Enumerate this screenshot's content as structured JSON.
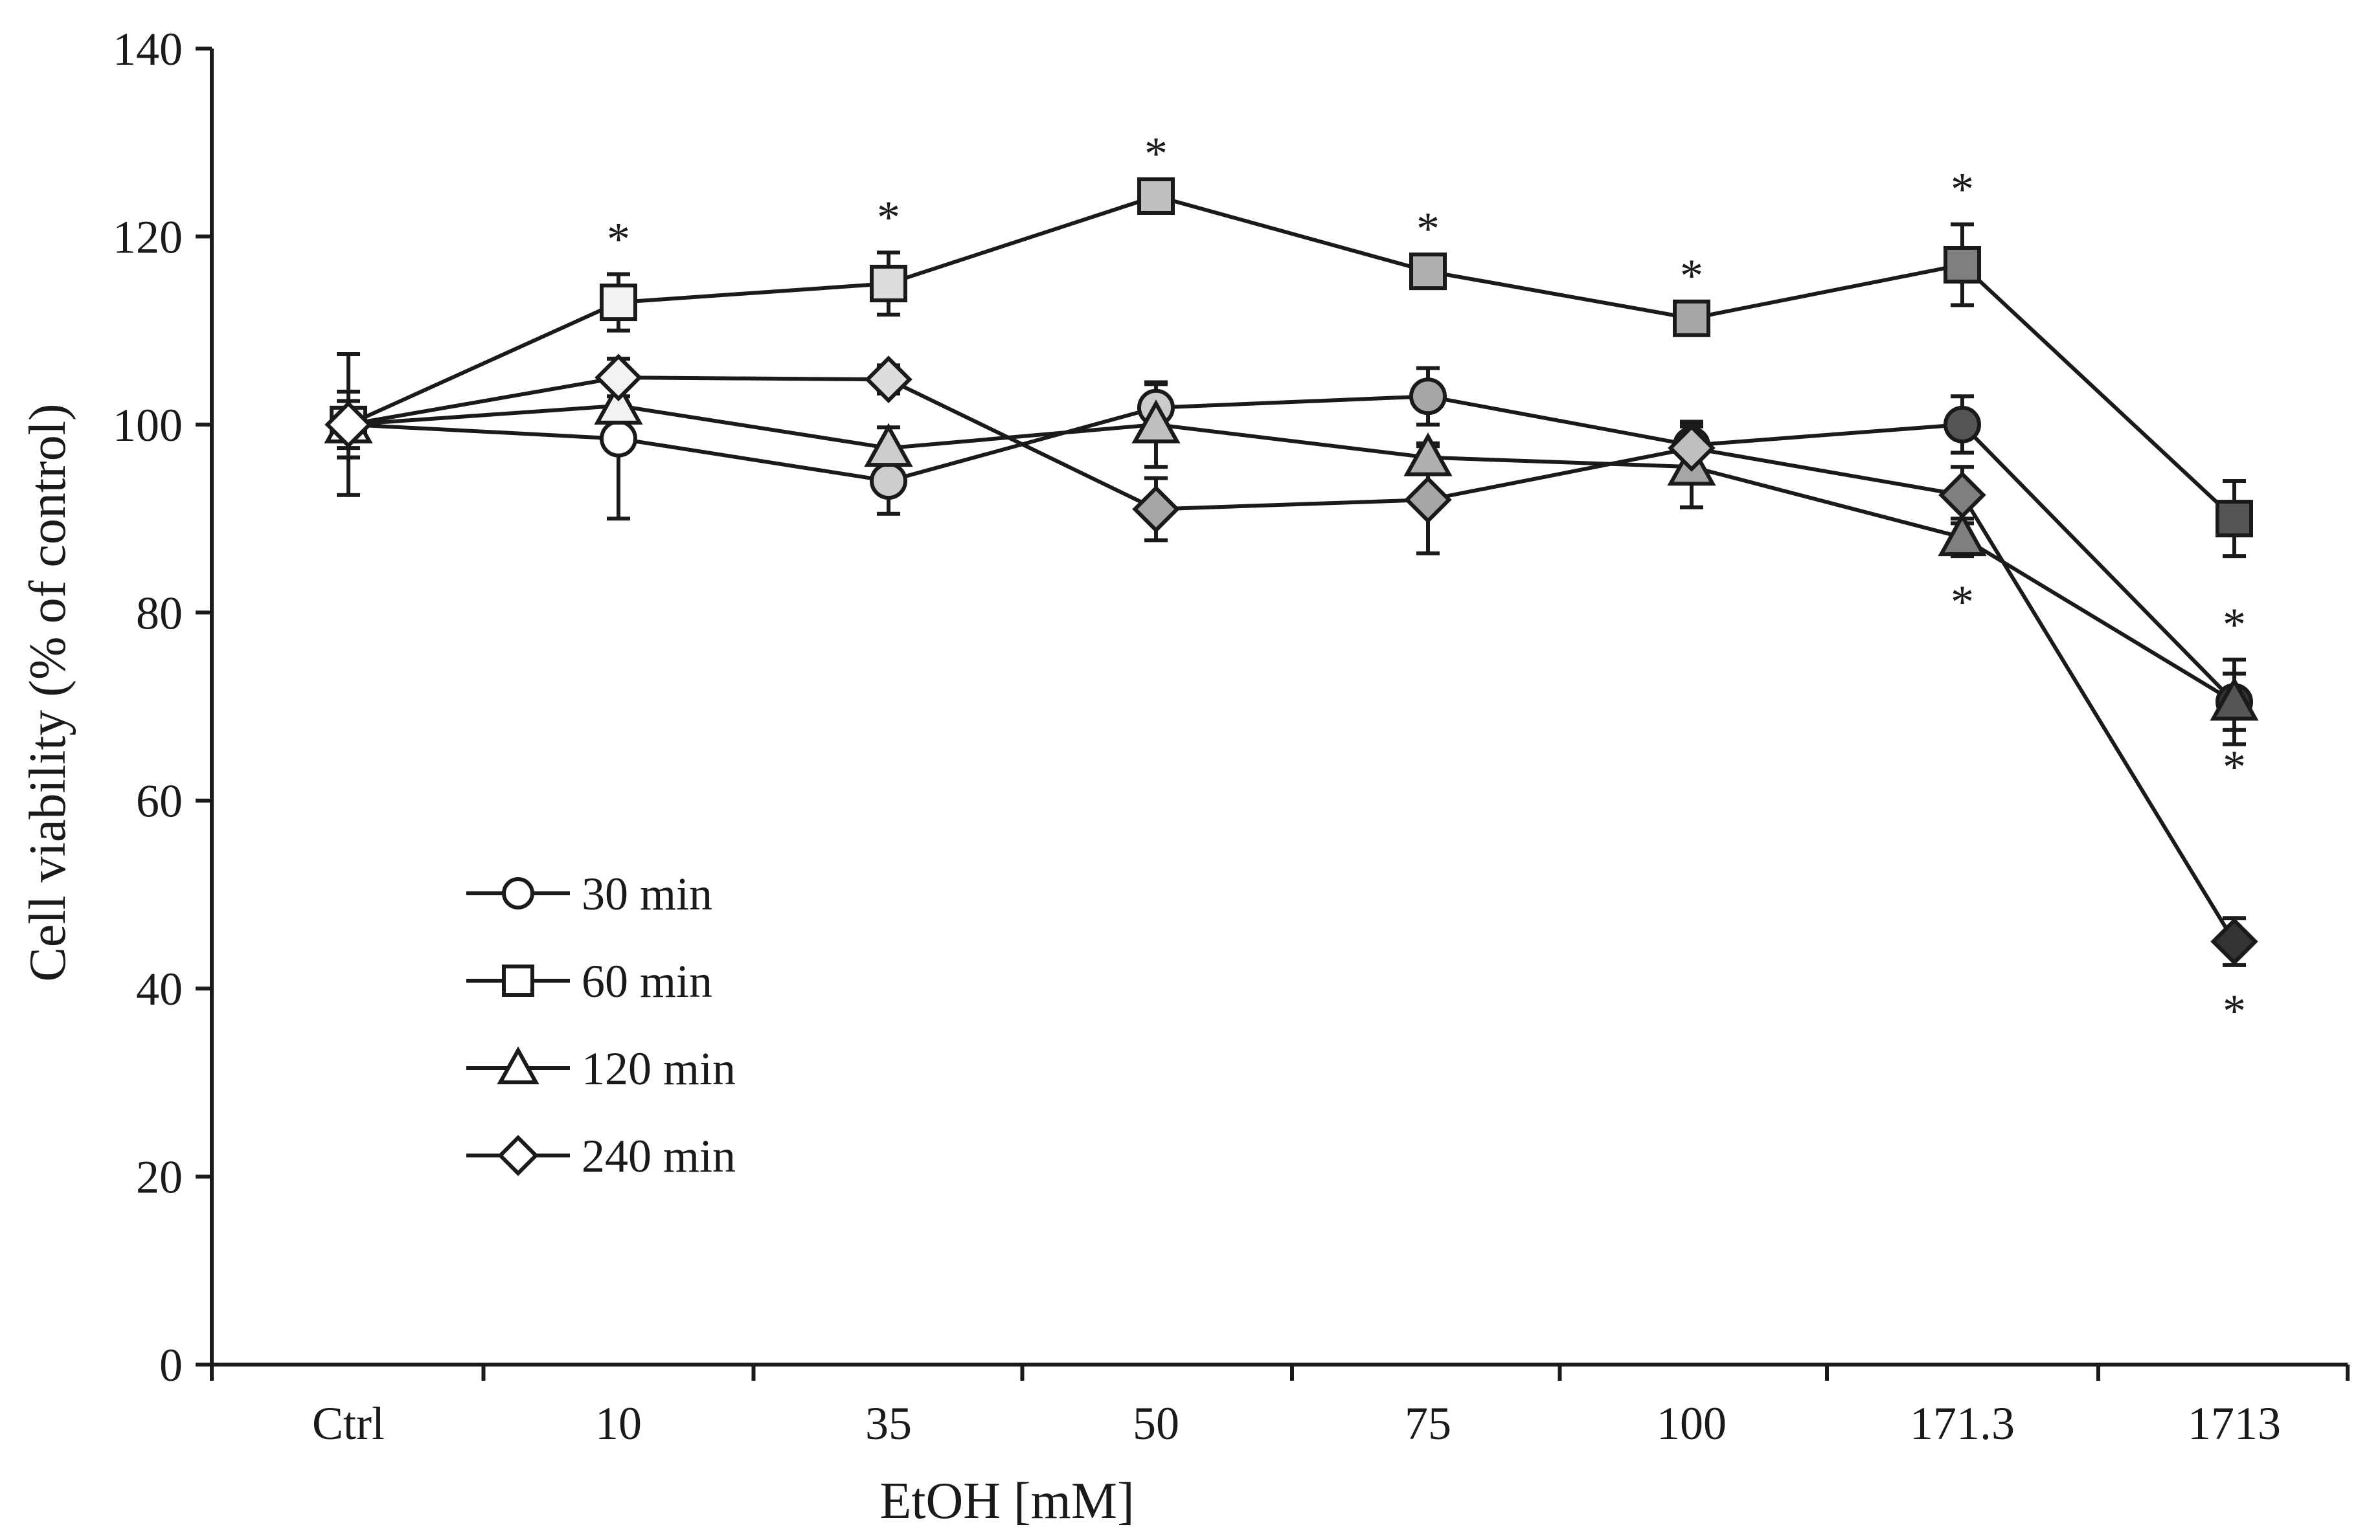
{
  "chart_data": {
    "type": "line",
    "title": "",
    "xlabel": "EtOH [mM]",
    "ylabel": "Cell viability (% of control)",
    "categories": [
      "Ctrl",
      "10",
      "35",
      "50",
      "75",
      "100",
      "171.3",
      "1713"
    ],
    "ylim": [
      0,
      140
    ],
    "yticks": [
      0,
      20,
      40,
      60,
      80,
      100,
      120,
      140
    ],
    "grid": false,
    "legend_position": "bottom-left",
    "significance_marker": "*",
    "series": [
      {
        "name": "30 min",
        "marker": "circle",
        "values": [
          100,
          98.5,
          94,
          101.8,
          103,
          97.8,
          100,
          70.5
        ],
        "errors": [
          3.5,
          8.5,
          3.5,
          2.5,
          3,
          2.5,
          3,
          3
        ],
        "fills": [
          "#ffffff",
          "#ffffff",
          "#cccccc",
          "#cccccc",
          "#a6a6a6",
          "#a6a6a6",
          "#555555",
          "#333333"
        ],
        "sig": [
          null,
          null,
          null,
          null,
          null,
          null,
          null,
          null
        ]
      },
      {
        "name": "60 min",
        "marker": "square",
        "values": [
          100,
          113,
          115,
          124.3,
          116.3,
          111.3,
          117,
          90
        ],
        "errors": [
          2.5,
          3,
          3.3,
          0.8,
          0.8,
          0.8,
          4.3,
          4
        ],
        "fills": [
          "#f2f2f2",
          "#f2f2f2",
          "#dddddd",
          "#bfbfbf",
          "#b0b0b0",
          "#a6a6a6",
          "#7f7f7f",
          "#555555"
        ],
        "sig": [
          null,
          "above",
          "above",
          "above",
          "above",
          "above",
          "above",
          null
        ]
      },
      {
        "name": "120 min",
        "marker": "triangle",
        "values": [
          100,
          102,
          97.5,
          100,
          96.5,
          95.5,
          88,
          70.5
        ],
        "errors": [
          3.5,
          2.5,
          2.2,
          4.5,
          1.5,
          4.3,
          2,
          4.5
        ],
        "fills": [
          "#ffffff",
          "#f2f2f2",
          "#cccccc",
          "#bfbfbf",
          "#b0b0b0",
          "#a6a6a6",
          "#7f7f7f",
          "#555555"
        ],
        "sig": [
          null,
          null,
          null,
          null,
          null,
          null,
          "below",
          "above"
        ]
      },
      {
        "name": "240 min",
        "marker": "diamond",
        "values": [
          100,
          105,
          104.8,
          91,
          92,
          97.5,
          92.5,
          45
        ],
        "errors": [
          7.5,
          2,
          1.5,
          3.3,
          5.7,
          2.7,
          3,
          2.5
        ],
        "fills": [
          "#ffffff",
          "#f2f2f2",
          "#dddddd",
          "#a6a6a6",
          "#a6a6a6",
          "#bfbfbf",
          "#7f7f7f",
          "#333333"
        ],
        "sig": [
          null,
          null,
          null,
          null,
          null,
          null,
          null,
          "below"
        ]
      }
    ],
    "extra_sig_marks": [
      {
        "category_index": 7,
        "value": 65,
        "position": "below"
      }
    ]
  }
}
